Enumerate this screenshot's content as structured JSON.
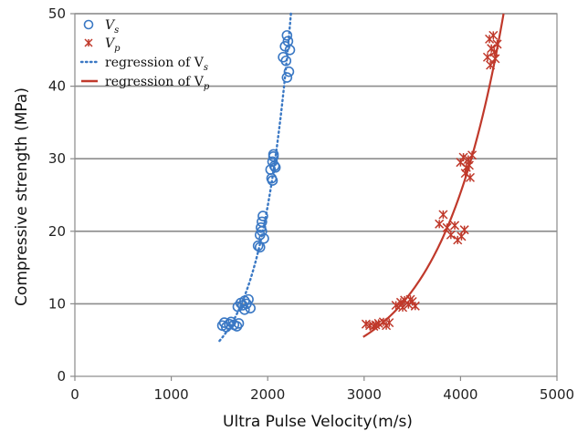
{
  "chart_data": {
    "type": "scatter",
    "xlabel": "Ultra Pulse Velocity(m/s)",
    "ylabel": "Compressive strength (MPa)",
    "xlim": [
      0,
      5000
    ],
    "ylim": [
      0,
      50
    ],
    "xticks": [
      0,
      1000,
      2000,
      3000,
      4000,
      5000
    ],
    "yticks": [
      0,
      10,
      20,
      30,
      40,
      50
    ],
    "grid": "horizontal",
    "legend_position": "top-left",
    "series": [
      {
        "name_main": "V",
        "name_sub": "s",
        "marker": "circle",
        "color": "#3a78c4",
        "points": [
          [
            1530,
            7.0
          ],
          [
            1550,
            7.4
          ],
          [
            1570,
            6.8
          ],
          [
            1600,
            7.2
          ],
          [
            1620,
            7.5
          ],
          [
            1650,
            7.1
          ],
          [
            1680,
            6.9
          ],
          [
            1700,
            7.3
          ],
          [
            1690,
            9.6
          ],
          [
            1720,
            10.1
          ],
          [
            1740,
            9.8
          ],
          [
            1760,
            10.4
          ],
          [
            1780,
            10.0
          ],
          [
            1800,
            10.6
          ],
          [
            1820,
            9.4
          ],
          [
            1760,
            9.2
          ],
          [
            1900,
            18.0
          ],
          [
            1920,
            19.5
          ],
          [
            1930,
            20.5
          ],
          [
            1940,
            21.3
          ],
          [
            1950,
            22.1
          ],
          [
            1960,
            19.0
          ],
          [
            1920,
            17.8
          ],
          [
            1940,
            20.0
          ],
          [
            2030,
            28.5
          ],
          [
            2050,
            29.6
          ],
          [
            2060,
            30.3
          ],
          [
            2070,
            29.0
          ],
          [
            2040,
            27.3
          ],
          [
            2080,
            28.8
          ],
          [
            2060,
            30.6
          ],
          [
            2050,
            27.0
          ],
          [
            2160,
            44.0
          ],
          [
            2180,
            45.5
          ],
          [
            2200,
            47.0
          ],
          [
            2210,
            46.2
          ],
          [
            2190,
            43.5
          ],
          [
            2220,
            42.0
          ],
          [
            2200,
            41.2
          ],
          [
            2230,
            45.0
          ]
        ],
        "regression_name": "regression of V",
        "regression_sub": "s",
        "regression_style": "dotted"
      },
      {
        "name_main": "V",
        "name_sub": "p",
        "marker": "asterisk",
        "color": "#c0392b",
        "points": [
          [
            3020,
            7.2
          ],
          [
            3060,
            7.0
          ],
          [
            3100,
            6.9
          ],
          [
            3150,
            7.3
          ],
          [
            3200,
            7.5
          ],
          [
            3230,
            7.0
          ],
          [
            3260,
            7.4
          ],
          [
            3120,
            7.1
          ],
          [
            3330,
            9.8
          ],
          [
            3380,
            10.2
          ],
          [
            3420,
            10.5
          ],
          [
            3460,
            9.9
          ],
          [
            3500,
            10.3
          ],
          [
            3530,
            9.7
          ],
          [
            3400,
            9.5
          ],
          [
            3480,
            10.6
          ],
          [
            3780,
            21.0
          ],
          [
            3820,
            22.3
          ],
          [
            3860,
            20.5
          ],
          [
            3900,
            19.5
          ],
          [
            3940,
            20.8
          ],
          [
            3970,
            18.8
          ],
          [
            4010,
            19.3
          ],
          [
            4040,
            20.2
          ],
          [
            4000,
            29.5
          ],
          [
            4030,
            30.2
          ],
          [
            4060,
            28.8
          ],
          [
            4080,
            29.9
          ],
          [
            4100,
            27.4
          ],
          [
            4120,
            30.5
          ],
          [
            4050,
            28.0
          ],
          [
            4090,
            29.1
          ],
          [
            4280,
            44.0
          ],
          [
            4300,
            46.5
          ],
          [
            4320,
            45.2
          ],
          [
            4340,
            47.0
          ],
          [
            4360,
            43.8
          ],
          [
            4380,
            45.8
          ],
          [
            4310,
            42.9
          ],
          [
            4350,
            44.7
          ]
        ],
        "regression_name": "regression of V",
        "regression_sub": "p",
        "regression_style": "solid"
      }
    ]
  }
}
